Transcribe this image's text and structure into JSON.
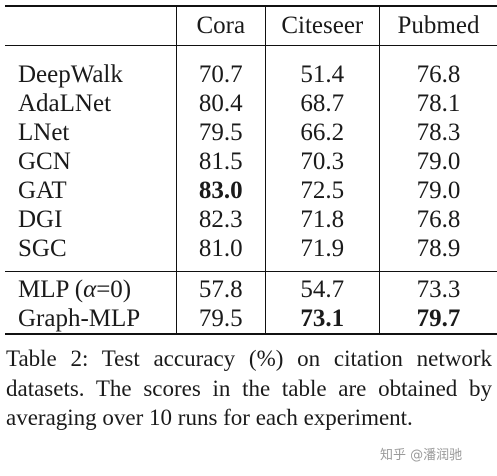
{
  "table": {
    "columns": [
      "",
      "Cora",
      "Citeseer",
      "Pubmed"
    ],
    "group1": [
      {
        "method": "DeepWalk",
        "cora": "70.7",
        "citeseer": "51.4",
        "pubmed": "76.8"
      },
      {
        "method": "AdaLNet",
        "cora": "80.4",
        "citeseer": "68.7",
        "pubmed": "78.1"
      },
      {
        "method": "LNet",
        "cora": "79.5",
        "citeseer": "66.2",
        "pubmed": "78.3"
      },
      {
        "method": "GCN",
        "cora": "81.5",
        "citeseer": "70.3",
        "pubmed": "79.0"
      },
      {
        "method": "GAT",
        "cora": "83.0",
        "citeseer": "72.5",
        "pubmed": "79.0"
      },
      {
        "method": "DGI",
        "cora": "82.3",
        "citeseer": "71.8",
        "pubmed": "76.8"
      },
      {
        "method": "SGC",
        "cora": "81.0",
        "citeseer": "71.9",
        "pubmed": "78.9"
      }
    ],
    "group2": [
      {
        "method_prefix": "MLP (",
        "method_alpha": "α",
        "method_suffix": "=0)",
        "cora": "57.8",
        "citeseer": "54.7",
        "pubmed": "73.3"
      },
      {
        "method": "Graph-MLP",
        "cora": "79.5",
        "citeseer": "73.1",
        "pubmed": "79.7"
      }
    ]
  },
  "caption": {
    "label": "Table 2:",
    "text": "Test accuracy (%) on citation network datasets. The scores in the table are obtained by averaging over 10 runs for each experiment."
  },
  "watermark": "知乎 @潘润驰"
}
